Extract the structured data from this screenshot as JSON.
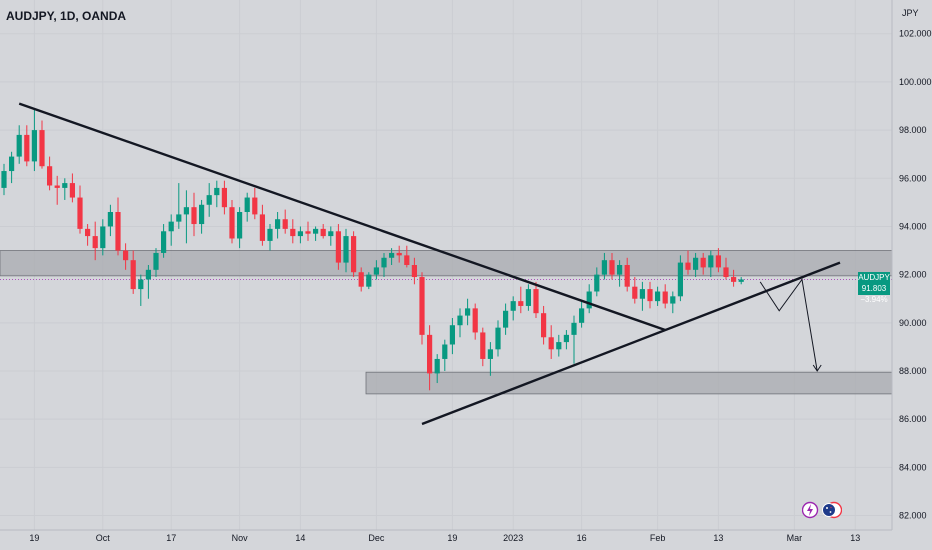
{
  "header": {
    "title": "AUDJPY, 1D, OANDA"
  },
  "chart_data": {
    "type": "candlestick",
    "currency": "JPY",
    "y_axis_ticks": [
      "102.000",
      "100.000",
      "98.000",
      "96.000",
      "94.000",
      "92.000",
      "90.000",
      "88.000",
      "86.000",
      "84.000",
      "82.000"
    ],
    "y_tick_values": [
      102,
      100,
      98,
      96,
      94,
      92,
      90,
      88,
      86,
      84,
      82
    ],
    "ylim": [
      81.4,
      103.4
    ],
    "x_axis_ticks": [
      {
        "label": "19",
        "bar": 4
      },
      {
        "label": "Oct",
        "bar": 13
      },
      {
        "label": "17",
        "bar": 22
      },
      {
        "label": "Nov",
        "bar": 31
      },
      {
        "label": "14",
        "bar": 39
      },
      {
        "label": "Dec",
        "bar": 49
      },
      {
        "label": "19",
        "bar": 59
      },
      {
        "label": "2023",
        "bar": 67
      },
      {
        "label": "16",
        "bar": 76
      },
      {
        "label": "Feb",
        "bar": 86
      },
      {
        "label": "13",
        "bar": 94
      },
      {
        "label": "Mar",
        "bar": 104
      },
      {
        "label": "13",
        "bar": 112
      }
    ],
    "current_price": "91.803",
    "current_change": "−3.94%",
    "current_symbol": "AUDJPY",
    "current_value": 91.803,
    "resistance_zone": {
      "low": 91.95,
      "high": 93.0
    },
    "support_zone": {
      "low": 87.05,
      "high": 87.95
    },
    "support_zone_start_bar": 45,
    "downtrend_line": {
      "start": {
        "bar": 2,
        "price": 99.1
      },
      "end": {
        "bar": 87,
        "price": 89.7
      }
    },
    "uptrend_line": {
      "start": {
        "bar": 55,
        "price": 85.8
      },
      "end": {
        "bar": 110,
        "price": 92.5
      }
    },
    "projection_path": [
      {
        "bar": 99.5,
        "price": 91.7
      },
      {
        "bar": 102,
        "price": 90.5
      },
      {
        "bar": 105,
        "price": 91.8
      },
      {
        "bar": 107,
        "price": 88.0
      }
    ],
    "ohlc": [
      [
        95.6,
        96.6,
        95.3,
        96.3
      ],
      [
        96.3,
        97.1,
        95.8,
        96.9
      ],
      [
        96.9,
        98.2,
        96.6,
        97.8
      ],
      [
        97.8,
        98.2,
        96.5,
        96.7
      ],
      [
        96.7,
        98.9,
        96.3,
        98.0
      ],
      [
        98.0,
        98.4,
        96.4,
        96.5
      ],
      [
        96.5,
        96.9,
        95.5,
        95.7
      ],
      [
        95.7,
        96.1,
        94.9,
        95.6
      ],
      [
        95.6,
        96.0,
        95.1,
        95.8
      ],
      [
        95.8,
        96.2,
        95.0,
        95.2
      ],
      [
        95.2,
        95.7,
        93.7,
        93.9
      ],
      [
        93.9,
        94.1,
        93.2,
        93.6
      ],
      [
        93.6,
        94.2,
        92.6,
        93.1
      ],
      [
        93.1,
        94.3,
        92.8,
        94.0
      ],
      [
        94.0,
        94.9,
        93.6,
        94.6
      ],
      [
        94.6,
        95.2,
        92.8,
        93.0
      ],
      [
        93.0,
        93.3,
        92.2,
        92.6
      ],
      [
        92.6,
        93.0,
        91.2,
        91.4
      ],
      [
        91.4,
        92.0,
        90.7,
        91.8
      ],
      [
        91.8,
        92.4,
        91.0,
        92.2
      ],
      [
        92.2,
        93.1,
        91.9,
        92.9
      ],
      [
        92.9,
        94.1,
        92.7,
        93.8
      ],
      [
        93.8,
        94.5,
        93.2,
        94.2
      ],
      [
        94.2,
        95.8,
        93.9,
        94.5
      ],
      [
        94.5,
        95.5,
        93.3,
        94.8
      ],
      [
        94.8,
        95.4,
        93.6,
        94.1
      ],
      [
        94.1,
        95.1,
        93.7,
        94.9
      ],
      [
        94.9,
        95.8,
        94.4,
        95.3
      ],
      [
        95.3,
        95.9,
        94.8,
        95.6
      ],
      [
        95.6,
        95.9,
        94.5,
        94.8
      ],
      [
        94.8,
        95.1,
        93.3,
        93.5
      ],
      [
        93.5,
        94.8,
        93.1,
        94.6
      ],
      [
        94.6,
        95.4,
        94.2,
        95.2
      ],
      [
        95.2,
        95.6,
        94.3,
        94.5
      ],
      [
        94.5,
        94.9,
        93.2,
        93.4
      ],
      [
        93.4,
        94.1,
        93.0,
        93.9
      ],
      [
        93.9,
        94.6,
        93.5,
        94.3
      ],
      [
        94.3,
        94.7,
        93.7,
        93.9
      ],
      [
        93.9,
        94.3,
        93.3,
        93.6
      ],
      [
        93.6,
        94.0,
        93.3,
        93.8
      ],
      [
        93.8,
        94.2,
        93.4,
        93.7
      ],
      [
        93.7,
        94.0,
        93.4,
        93.9
      ],
      [
        93.9,
        94.1,
        93.5,
        93.6
      ],
      [
        93.6,
        94.0,
        93.2,
        93.8
      ],
      [
        93.8,
        94.1,
        92.2,
        92.5
      ],
      [
        92.5,
        93.9,
        92.1,
        93.6
      ],
      [
        93.6,
        93.8,
        91.9,
        92.1
      ],
      [
        92.1,
        92.3,
        91.3,
        91.5
      ],
      [
        91.5,
        92.1,
        91.4,
        92.0
      ],
      [
        92.0,
        92.6,
        91.8,
        92.3
      ],
      [
        92.3,
        92.9,
        91.9,
        92.7
      ],
      [
        92.7,
        93.1,
        92.4,
        92.9
      ],
      [
        92.9,
        93.2,
        92.5,
        92.8
      ],
      [
        92.8,
        93.2,
        92.3,
        92.4
      ],
      [
        92.4,
        92.7,
        91.6,
        91.9
      ],
      [
        91.9,
        92.1,
        89.1,
        89.5
      ],
      [
        89.5,
        89.9,
        87.2,
        87.9
      ],
      [
        87.9,
        88.7,
        87.5,
        88.5
      ],
      [
        88.5,
        89.3,
        88.0,
        89.1
      ],
      [
        89.1,
        90.2,
        88.7,
        89.9
      ],
      [
        89.9,
        90.6,
        89.4,
        90.3
      ],
      [
        90.3,
        91.0,
        89.9,
        90.6
      ],
      [
        90.6,
        90.8,
        89.3,
        89.6
      ],
      [
        89.6,
        89.8,
        88.2,
        88.5
      ],
      [
        88.5,
        89.2,
        87.8,
        88.9
      ],
      [
        88.9,
        90.1,
        88.6,
        89.8
      ],
      [
        89.8,
        90.8,
        89.5,
        90.5
      ],
      [
        90.5,
        91.1,
        90.1,
        90.9
      ],
      [
        90.9,
        91.5,
        90.4,
        90.7
      ],
      [
        90.7,
        91.6,
        90.5,
        91.4
      ],
      [
        91.4,
        91.7,
        90.2,
        90.4
      ],
      [
        90.4,
        90.7,
        89.1,
        89.4
      ],
      [
        89.4,
        89.9,
        88.5,
        88.9
      ],
      [
        88.9,
        89.5,
        88.6,
        89.2
      ],
      [
        89.2,
        89.7,
        88.9,
        89.5
      ],
      [
        89.5,
        90.3,
        88.3,
        90.0
      ],
      [
        90.0,
        90.9,
        89.8,
        90.6
      ],
      [
        90.6,
        91.6,
        90.4,
        91.3
      ],
      [
        91.3,
        92.3,
        91.1,
        92.0
      ],
      [
        92.0,
        92.9,
        91.8,
        92.6
      ],
      [
        92.6,
        92.9,
        91.8,
        92.0
      ],
      [
        92.0,
        92.6,
        91.5,
        92.4
      ],
      [
        92.4,
        92.7,
        91.3,
        91.5
      ],
      [
        91.5,
        91.9,
        90.8,
        91.0
      ],
      [
        91.0,
        91.7,
        90.5,
        91.4
      ],
      [
        91.4,
        91.7,
        90.6,
        90.9
      ],
      [
        90.9,
        91.5,
        90.7,
        91.3
      ],
      [
        91.3,
        91.6,
        90.6,
        90.8
      ],
      [
        90.8,
        91.3,
        90.4,
        91.1
      ],
      [
        91.1,
        92.8,
        90.9,
        92.5
      ],
      [
        92.5,
        93.0,
        92.0,
        92.2
      ],
      [
        92.2,
        92.9,
        91.9,
        92.7
      ],
      [
        92.7,
        92.9,
        92.0,
        92.3
      ],
      [
        92.3,
        93.0,
        91.9,
        92.8
      ],
      [
        92.8,
        93.1,
        92.1,
        92.3
      ],
      [
        92.3,
        92.7,
        91.8,
        91.9
      ],
      [
        91.9,
        92.2,
        91.5,
        91.7
      ],
      [
        91.7,
        91.9,
        91.6,
        91.8
      ]
    ]
  },
  "badges": {
    "lightning_icon": "lightning-icon",
    "flag_icon": "australia-flag-icon"
  }
}
